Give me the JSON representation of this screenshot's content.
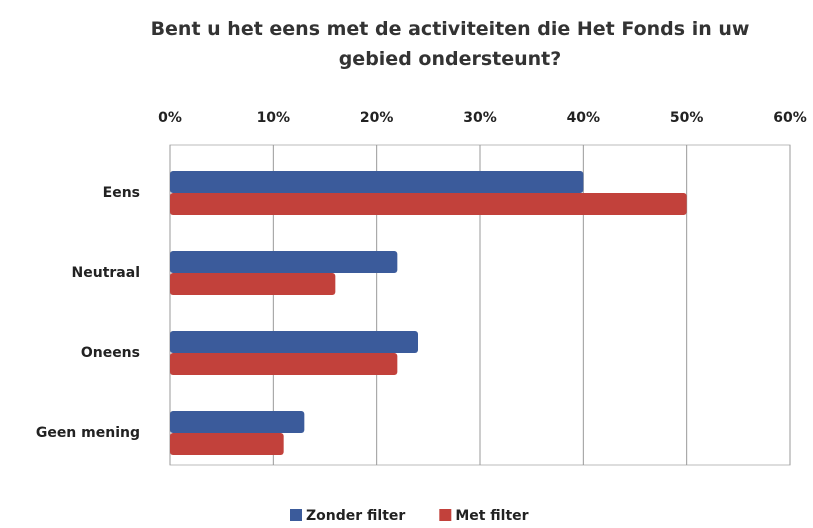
{
  "chart_data": {
    "type": "barh",
    "title": "Bent u het eens met de activiteiten die Het Fonds in uw gebied ondersteunt?",
    "categories": [
      "Eens",
      "Neutraal",
      "Oneens",
      "Geen mening"
    ],
    "series": [
      {
        "name": "Zonder filter",
        "color": "#3b5b9b",
        "values": [
          40,
          22,
          24,
          13
        ]
      },
      {
        "name": "Met filter",
        "color": "#c2413b",
        "values": [
          50,
          16,
          22,
          11
        ]
      }
    ],
    "xlim": [
      0,
      60
    ],
    "xticks": [
      {
        "value": 0,
        "label": "0%"
      },
      {
        "value": 10,
        "label": "10%"
      },
      {
        "value": 20,
        "label": "20%"
      },
      {
        "value": 30,
        "label": "30%"
      },
      {
        "value": 40,
        "label": "40%"
      },
      {
        "value": 50,
        "label": "50%"
      },
      {
        "value": 60,
        "label": "60%"
      }
    ],
    "grid": true
  }
}
